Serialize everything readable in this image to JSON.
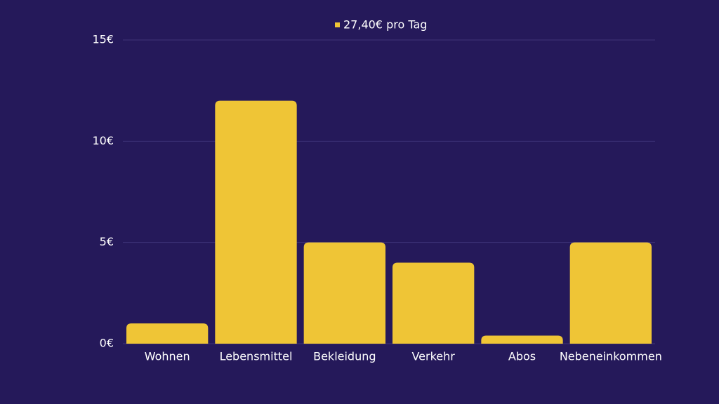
{
  "chart_data": {
    "type": "bar",
    "categories": [
      "Wohnen",
      "Lebensmittel",
      "Bekleidung",
      "Verkehr",
      "Abos",
      "Nebeneinkommen"
    ],
    "series": [
      {
        "name": "27,40€ pro Tag",
        "color": "#efc536",
        "values": [
          1,
          12,
          5,
          4,
          0.4,
          5
        ]
      }
    ],
    "ylim": [
      0,
      15
    ],
    "yticks": [
      {
        "value": 0,
        "label": "0€"
      },
      {
        "value": 5,
        "label": "5€"
      },
      {
        "value": 10,
        "label": "10€"
      },
      {
        "value": 15,
        "label": "15€"
      }
    ],
    "grid": true,
    "legend": "top"
  }
}
